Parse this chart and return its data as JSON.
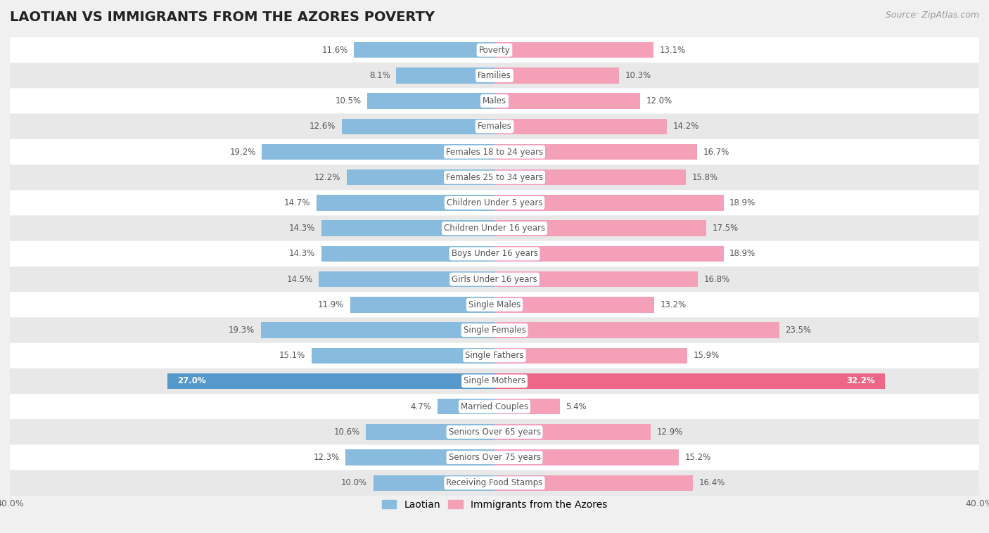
{
  "title": "LAOTIAN VS IMMIGRANTS FROM THE AZORES POVERTY",
  "source": "Source: ZipAtlas.com",
  "categories": [
    "Poverty",
    "Families",
    "Males",
    "Females",
    "Females 18 to 24 years",
    "Females 25 to 34 years",
    "Children Under 5 years",
    "Children Under 16 years",
    "Boys Under 16 years",
    "Girls Under 16 years",
    "Single Males",
    "Single Females",
    "Single Fathers",
    "Single Mothers",
    "Married Couples",
    "Seniors Over 65 years",
    "Seniors Over 75 years",
    "Receiving Food Stamps"
  ],
  "laotian": [
    11.6,
    8.1,
    10.5,
    12.6,
    19.2,
    12.2,
    14.7,
    14.3,
    14.3,
    14.5,
    11.9,
    19.3,
    15.1,
    27.0,
    4.7,
    10.6,
    12.3,
    10.0
  ],
  "azores": [
    13.1,
    10.3,
    12.0,
    14.2,
    16.7,
    15.8,
    18.9,
    17.5,
    18.9,
    16.8,
    13.2,
    23.5,
    15.9,
    32.2,
    5.4,
    12.9,
    15.2,
    16.4
  ],
  "laotian_color": "#88bbdd",
  "azores_color": "#f4a0b8",
  "single_mothers_lao_color": "#5599cc",
  "single_mothers_azr_color": "#ee6688",
  "bar_height": 0.62,
  "xlim": 40,
  "background_color": "#f0f0f0",
  "row_color_odd": "#ffffff",
  "row_color_even": "#e8e8e8",
  "label_bg_color": "#ffffff",
  "label_text_color": "#555555",
  "value_text_color": "#555555",
  "legend_laotian": "Laotian",
  "legend_azores": "Immigrants from the Azores",
  "title_fontsize": 14,
  "label_fontsize": 8.5,
  "value_fontsize": 8.5
}
